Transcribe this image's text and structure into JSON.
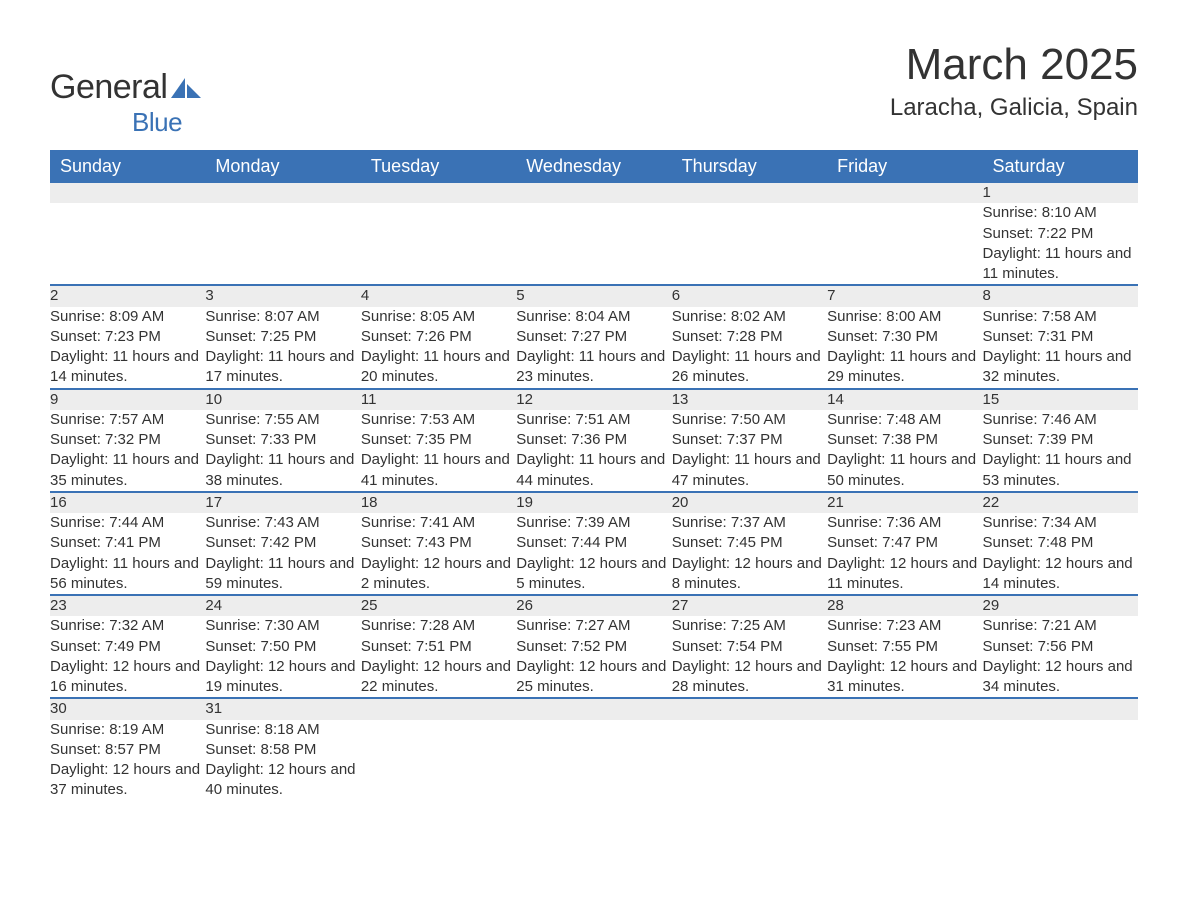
{
  "brand": {
    "word1": "General",
    "word2": "Blue",
    "color_dark": "#333333",
    "color_blue": "#3a72b5"
  },
  "header": {
    "title": "March 2025",
    "location": "Laracha, Galicia, Spain"
  },
  "calendar": {
    "header_bg": "#3a72b5",
    "header_text_color": "#ffffff",
    "daynum_bg": "#ededed",
    "border_color": "#3a72b5",
    "text_color": "#333333",
    "font_size_header": 18,
    "font_size_daynum": 17,
    "font_size_body": 15,
    "columns": [
      "Sunday",
      "Monday",
      "Tuesday",
      "Wednesday",
      "Thursday",
      "Friday",
      "Saturday"
    ],
    "weeks": [
      [
        null,
        null,
        null,
        null,
        null,
        null,
        {
          "n": "1",
          "sr": "8:10 AM",
          "ss": "7:22 PM",
          "dl": "11 hours and 11 minutes."
        }
      ],
      [
        {
          "n": "2",
          "sr": "8:09 AM",
          "ss": "7:23 PM",
          "dl": "11 hours and 14 minutes."
        },
        {
          "n": "3",
          "sr": "8:07 AM",
          "ss": "7:25 PM",
          "dl": "11 hours and 17 minutes."
        },
        {
          "n": "4",
          "sr": "8:05 AM",
          "ss": "7:26 PM",
          "dl": "11 hours and 20 minutes."
        },
        {
          "n": "5",
          "sr": "8:04 AM",
          "ss": "7:27 PM",
          "dl": "11 hours and 23 minutes."
        },
        {
          "n": "6",
          "sr": "8:02 AM",
          "ss": "7:28 PM",
          "dl": "11 hours and 26 minutes."
        },
        {
          "n": "7",
          "sr": "8:00 AM",
          "ss": "7:30 PM",
          "dl": "11 hours and 29 minutes."
        },
        {
          "n": "8",
          "sr": "7:58 AM",
          "ss": "7:31 PM",
          "dl": "11 hours and 32 minutes."
        }
      ],
      [
        {
          "n": "9",
          "sr": "7:57 AM",
          "ss": "7:32 PM",
          "dl": "11 hours and 35 minutes."
        },
        {
          "n": "10",
          "sr": "7:55 AM",
          "ss": "7:33 PM",
          "dl": "11 hours and 38 minutes."
        },
        {
          "n": "11",
          "sr": "7:53 AM",
          "ss": "7:35 PM",
          "dl": "11 hours and 41 minutes."
        },
        {
          "n": "12",
          "sr": "7:51 AM",
          "ss": "7:36 PM",
          "dl": "11 hours and 44 minutes."
        },
        {
          "n": "13",
          "sr": "7:50 AM",
          "ss": "7:37 PM",
          "dl": "11 hours and 47 minutes."
        },
        {
          "n": "14",
          "sr": "7:48 AM",
          "ss": "7:38 PM",
          "dl": "11 hours and 50 minutes."
        },
        {
          "n": "15",
          "sr": "7:46 AM",
          "ss": "7:39 PM",
          "dl": "11 hours and 53 minutes."
        }
      ],
      [
        {
          "n": "16",
          "sr": "7:44 AM",
          "ss": "7:41 PM",
          "dl": "11 hours and 56 minutes."
        },
        {
          "n": "17",
          "sr": "7:43 AM",
          "ss": "7:42 PM",
          "dl": "11 hours and 59 minutes."
        },
        {
          "n": "18",
          "sr": "7:41 AM",
          "ss": "7:43 PM",
          "dl": "12 hours and 2 minutes."
        },
        {
          "n": "19",
          "sr": "7:39 AM",
          "ss": "7:44 PM",
          "dl": "12 hours and 5 minutes."
        },
        {
          "n": "20",
          "sr": "7:37 AM",
          "ss": "7:45 PM",
          "dl": "12 hours and 8 minutes."
        },
        {
          "n": "21",
          "sr": "7:36 AM",
          "ss": "7:47 PM",
          "dl": "12 hours and 11 minutes."
        },
        {
          "n": "22",
          "sr": "7:34 AM",
          "ss": "7:48 PM",
          "dl": "12 hours and 14 minutes."
        }
      ],
      [
        {
          "n": "23",
          "sr": "7:32 AM",
          "ss": "7:49 PM",
          "dl": "12 hours and 16 minutes."
        },
        {
          "n": "24",
          "sr": "7:30 AM",
          "ss": "7:50 PM",
          "dl": "12 hours and 19 minutes."
        },
        {
          "n": "25",
          "sr": "7:28 AM",
          "ss": "7:51 PM",
          "dl": "12 hours and 22 minutes."
        },
        {
          "n": "26",
          "sr": "7:27 AM",
          "ss": "7:52 PM",
          "dl": "12 hours and 25 minutes."
        },
        {
          "n": "27",
          "sr": "7:25 AM",
          "ss": "7:54 PM",
          "dl": "12 hours and 28 minutes."
        },
        {
          "n": "28",
          "sr": "7:23 AM",
          "ss": "7:55 PM",
          "dl": "12 hours and 31 minutes."
        },
        {
          "n": "29",
          "sr": "7:21 AM",
          "ss": "7:56 PM",
          "dl": "12 hours and 34 minutes."
        }
      ],
      [
        {
          "n": "30",
          "sr": "8:19 AM",
          "ss": "8:57 PM",
          "dl": "12 hours and 37 minutes."
        },
        {
          "n": "31",
          "sr": "8:18 AM",
          "ss": "8:58 PM",
          "dl": "12 hours and 40 minutes."
        },
        null,
        null,
        null,
        null,
        null
      ]
    ],
    "labels": {
      "sunrise": "Sunrise:",
      "sunset": "Sunset:",
      "daylight": "Daylight:"
    }
  }
}
